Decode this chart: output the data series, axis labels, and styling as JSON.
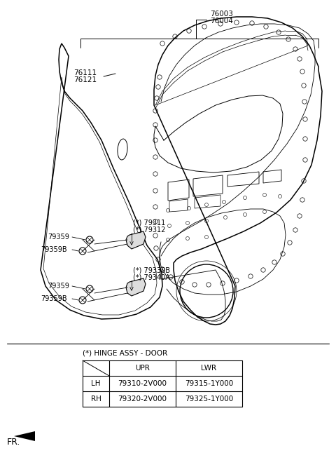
{
  "bg_color": "#ffffff",
  "line_color": "#000000",
  "table_title": "(*) HINGE ASSY - DOOR",
  "table_rows": [
    [
      "LH",
      "79310-2V000",
      "79315-1Y000"
    ],
    [
      "RH",
      "79320-2V000",
      "79325-1Y000"
    ]
  ],
  "label_76003": "76003",
  "label_76004": "76004",
  "label_76111": "76111",
  "label_76121": "76121",
  "label_79311": "(*) 79311",
  "label_79312": "(*) 79312",
  "label_79330B": "(*) 79330B",
  "label_79340A": "(*) 79340A",
  "label_79359_1": "79359",
  "label_79359B_1": "79359B",
  "label_79359_2": "79359",
  "label_79359B_2": "79359B",
  "label_fr": "FR."
}
